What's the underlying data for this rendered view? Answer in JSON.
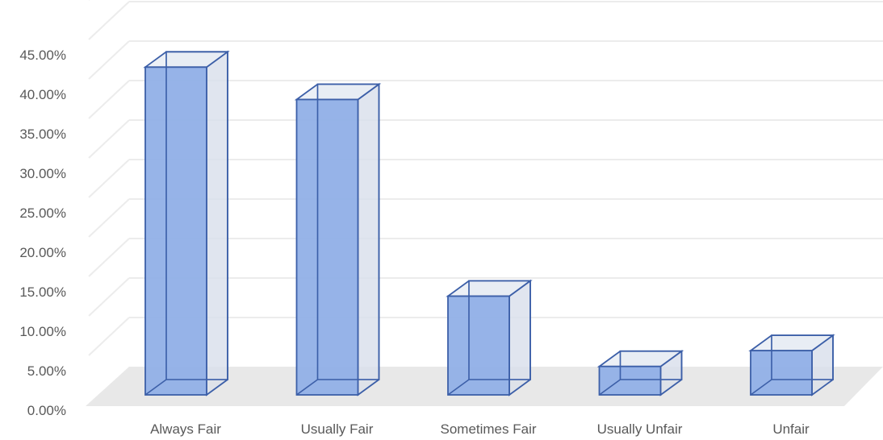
{
  "chart_data": {
    "type": "bar",
    "title": "",
    "xlabel": "",
    "ylabel": "",
    "categories": [
      "Always Fair",
      "Usually Fair",
      "Sometimes Fair",
      "Usually Unfair",
      "Unfair"
    ],
    "values": [
      0.415,
      0.374,
      0.125,
      0.036,
      0.056
    ],
    "ylim": [
      0,
      0.45
    ],
    "yticks": [
      0,
      0.05,
      0.1,
      0.15,
      0.2,
      0.25,
      0.3,
      0.35,
      0.4,
      0.45
    ],
    "ytick_labels": [
      "0.00%",
      "5.00%",
      "10.00%",
      "15.00%",
      "20.00%",
      "25.00%",
      "30.00%",
      "35.00%",
      "40.00%",
      "45.00%"
    ],
    "grid": true,
    "legend": "none",
    "style": "3d-column",
    "colors": {
      "bar_fill": "#8eaee6",
      "bar_edge": "#3c5fa8",
      "floor": "#e8e8e8",
      "grid": "#ececec",
      "text": "#595959"
    }
  }
}
